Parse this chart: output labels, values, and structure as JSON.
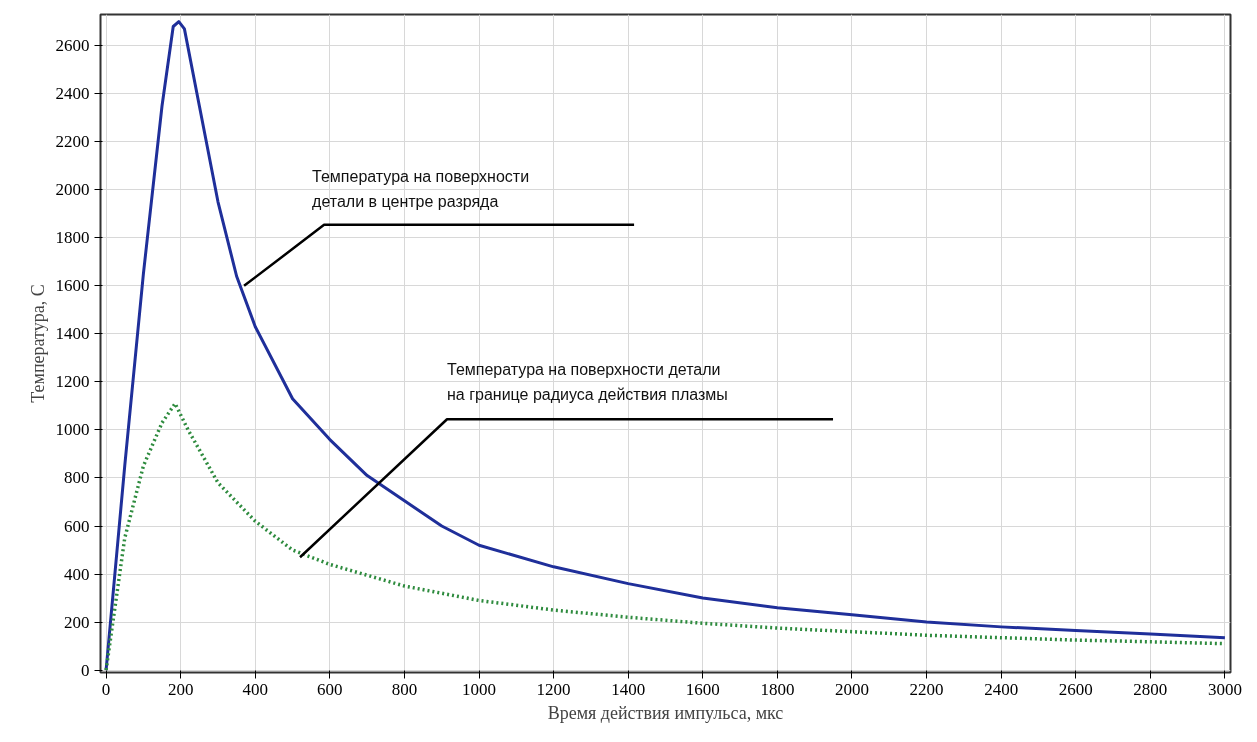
{
  "chart_data": {
    "type": "line",
    "xlabel": "Время действия импульса, мкс",
    "ylabel": "Температура, С",
    "xlim": [
      -15,
      3015
    ],
    "ylim": [
      -10,
      2730
    ],
    "xticks": [
      0,
      200,
      400,
      600,
      800,
      1000,
      1200,
      1400,
      1600,
      1800,
      2000,
      2200,
      2400,
      2600,
      2800,
      3000
    ],
    "yticks": [
      0,
      200,
      400,
      600,
      800,
      1000,
      1200,
      1400,
      1600,
      1800,
      2000,
      2200,
      2400,
      2600
    ],
    "grid": true,
    "marker": "none",
    "series": [
      {
        "color": "#1f2f9a",
        "line_style": "solid",
        "x": [
          0,
          50,
          100,
          150,
          180,
          195,
          210,
          250,
          300,
          350,
          400,
          500,
          600,
          700,
          800,
          900,
          1000,
          1200,
          1400,
          1600,
          1800,
          2000,
          2200,
          2400,
          2600,
          2800,
          3000
        ],
        "values": [
          0,
          850,
          1650,
          2350,
          2680,
          2700,
          2670,
          2350,
          1950,
          1640,
          1430,
          1130,
          960,
          810,
          705,
          600,
          520,
          430,
          360,
          300,
          260,
          230,
          200,
          180,
          165,
          150,
          135
        ]
      },
      {
        "color": "#2e8b3e",
        "line_style": "dotted",
        "x": [
          0,
          50,
          100,
          150,
          185,
          220,
          300,
          400,
          500,
          600,
          800,
          1000,
          1200,
          1400,
          1600,
          1800,
          2000,
          2200,
          2400,
          2600,
          2800,
          3000
        ],
        "values": [
          0,
          550,
          850,
          1030,
          1110,
          1000,
          780,
          620,
          500,
          440,
          350,
          290,
          250,
          220,
          195,
          175,
          160,
          145,
          135,
          125,
          118,
          110
        ]
      }
    ],
    "annotations": [
      {
        "text": "Температура на поверхности\nдетали в центре разряда",
        "x": 370,
        "y": 1600
      },
      {
        "text": "Температура на поверхности детали\nна границе радиуса действия плазмы",
        "x": 520,
        "y": 470
      }
    ]
  }
}
